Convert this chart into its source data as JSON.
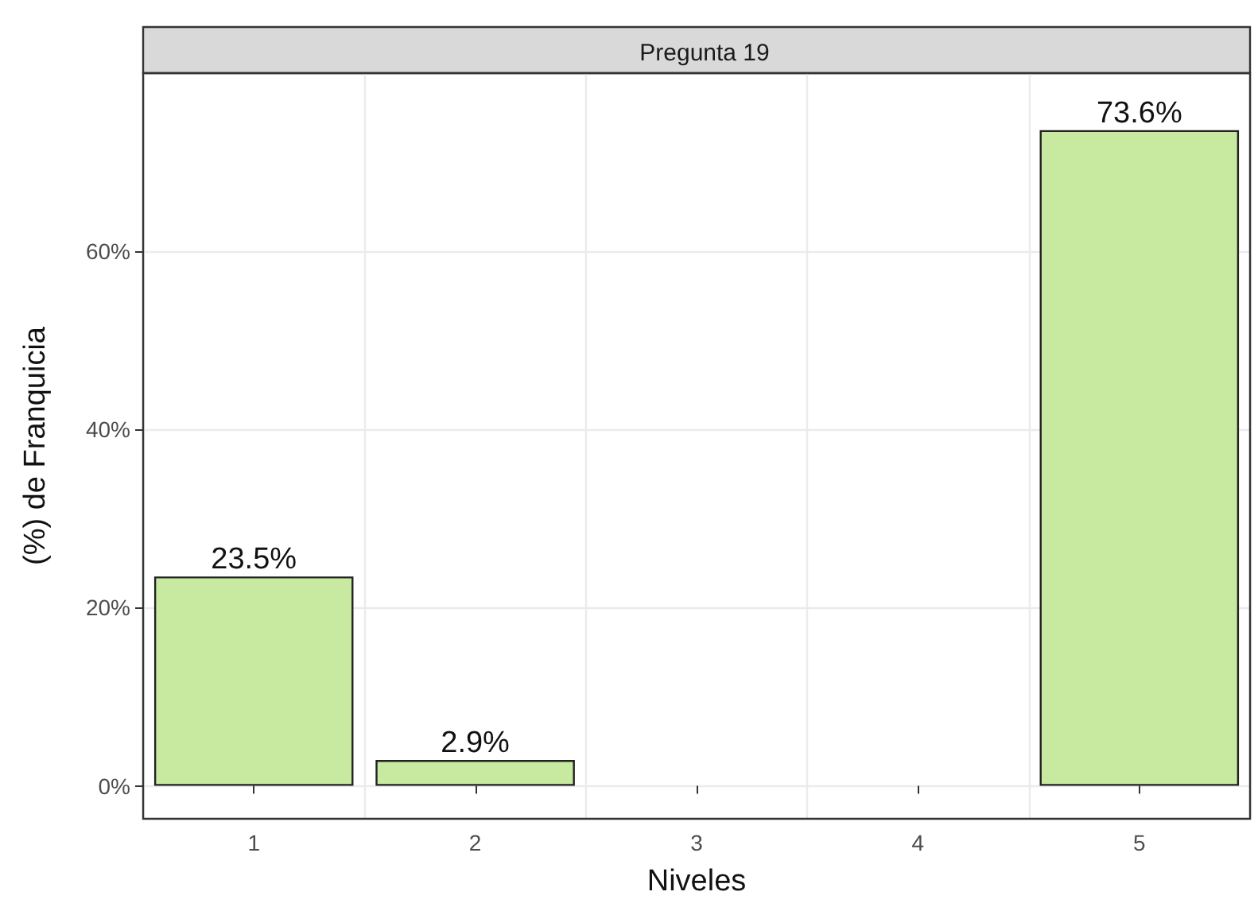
{
  "chart_data": {
    "type": "bar",
    "title": "Pregunta 19",
    "xlabel": "Niveles",
    "ylabel": "(%) de Franquicia",
    "categories": [
      "1",
      "2",
      "3",
      "4",
      "5"
    ],
    "values": [
      23.5,
      2.9,
      null,
      null,
      73.6
    ],
    "value_labels": [
      "23.5%",
      "2.9%",
      null,
      null,
      "73.6%"
    ],
    "color": "#c8eaa0",
    "ylim": [
      -3.7,
      80
    ],
    "yticks": [
      {
        "value": 0,
        "label": "0%"
      },
      {
        "value": 20,
        "label": "20%"
      },
      {
        "value": 40,
        "label": "40%"
      },
      {
        "value": 60,
        "label": "60%"
      }
    ],
    "grid": true
  }
}
